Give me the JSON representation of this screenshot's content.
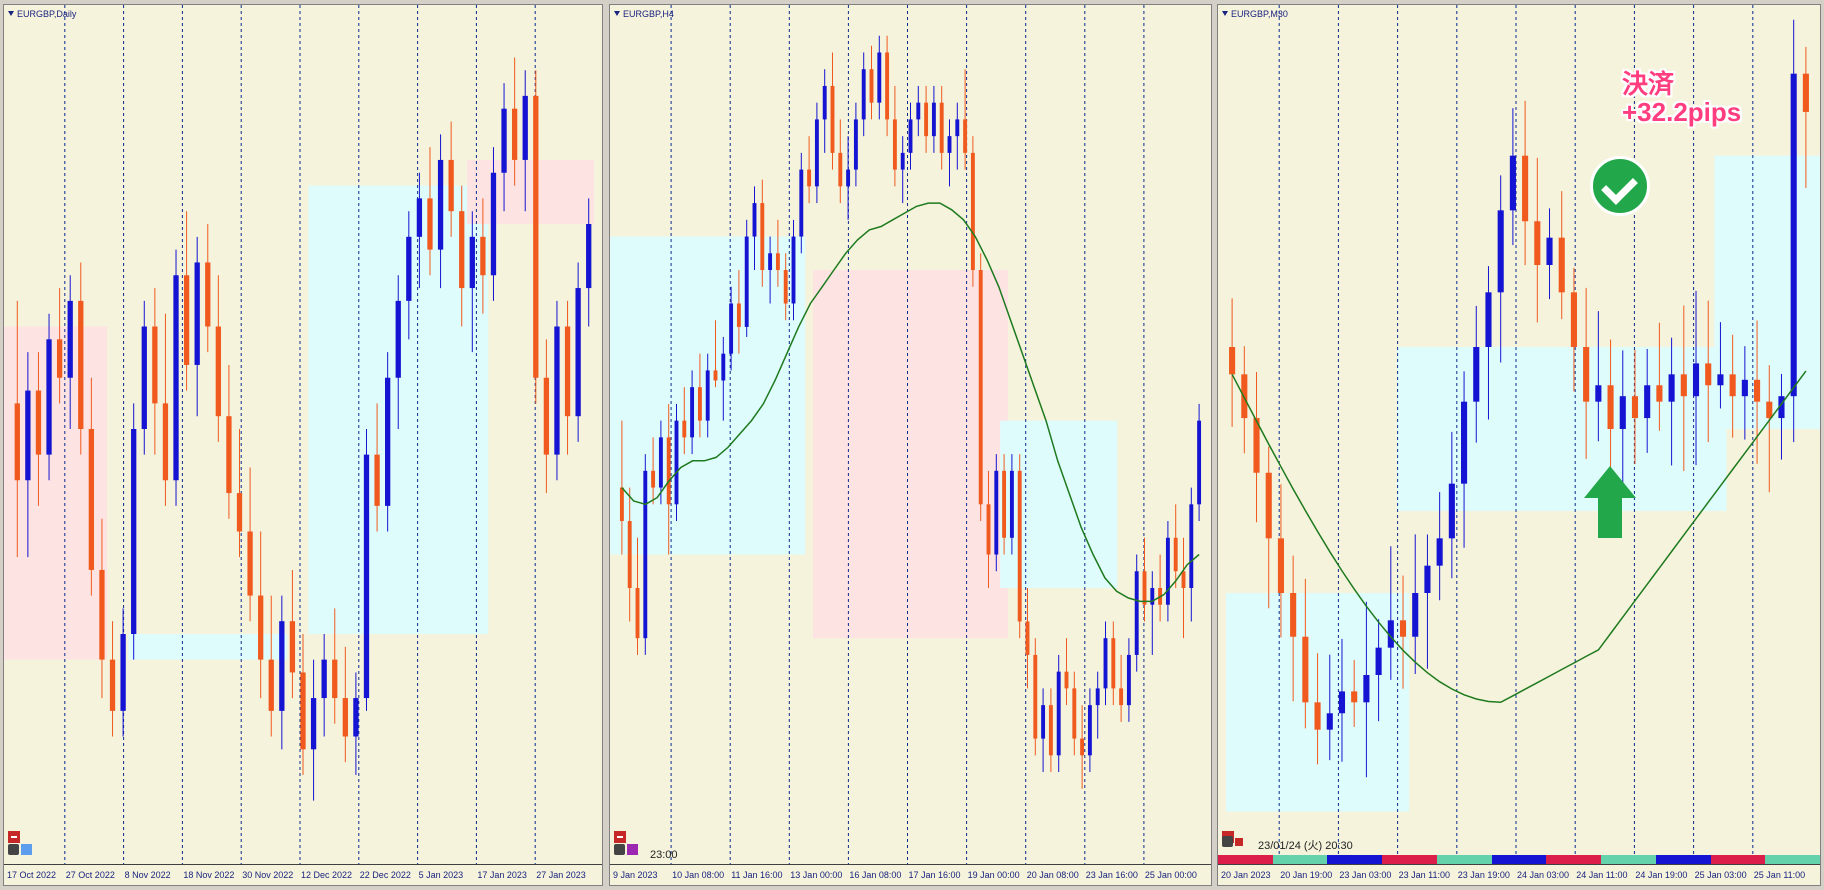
{
  "colors": {
    "bull": "#1414d2",
    "bear": "#f05a1e",
    "ma": "#1e7a1e",
    "bg": "#f5f3dc",
    "zone_blue": "#dffcfc",
    "zone_pink": "#fde4e2",
    "grid": "#0b2b8f"
  },
  "chart_data": [
    {
      "type": "candlestick",
      "title": "EURGBP,Daily",
      "tick_labels": [
        "17 Oct 2022",
        "27 Oct 2022",
        "8 Nov 2022",
        "18 Nov 2022",
        "30 Nov 2022",
        "12 Dec 2022",
        "22 Dec 2022",
        "5 Jan 2023",
        "17 Jan 2023",
        "27 Jan 2023"
      ],
      "ohlc": [
        [
          0.87,
          0.878,
          0.858,
          0.864
        ],
        [
          0.864,
          0.874,
          0.858,
          0.871
        ],
        [
          0.871,
          0.874,
          0.862,
          0.866
        ],
        [
          0.866,
          0.877,
          0.864,
          0.875
        ],
        [
          0.875,
          0.879,
          0.87,
          0.872
        ],
        [
          0.872,
          0.88,
          0.868,
          0.878
        ],
        [
          0.878,
          0.881,
          0.866,
          0.868
        ],
        [
          0.868,
          0.872,
          0.855,
          0.857
        ],
        [
          0.857,
          0.861,
          0.847,
          0.85
        ],
        [
          0.85,
          0.853,
          0.844,
          0.846
        ],
        [
          0.846,
          0.854,
          0.844,
          0.852
        ],
        [
          0.852,
          0.87,
          0.85,
          0.868
        ],
        [
          0.868,
          0.878,
          0.866,
          0.876
        ],
        [
          0.876,
          0.879,
          0.866,
          0.87
        ],
        [
          0.87,
          0.877,
          0.862,
          0.864
        ],
        [
          0.864,
          0.882,
          0.862,
          0.88
        ],
        [
          0.88,
          0.885,
          0.871,
          0.873
        ],
        [
          0.873,
          0.883,
          0.869,
          0.881
        ],
        [
          0.881,
          0.884,
          0.874,
          0.876
        ],
        [
          0.876,
          0.88,
          0.867,
          0.869
        ],
        [
          0.869,
          0.873,
          0.861,
          0.863
        ],
        [
          0.863,
          0.868,
          0.858,
          0.86
        ],
        [
          0.86,
          0.865,
          0.853,
          0.855
        ],
        [
          0.855,
          0.86,
          0.847,
          0.85
        ],
        [
          0.85,
          0.855,
          0.844,
          0.846
        ],
        [
          0.846,
          0.855,
          0.843,
          0.853
        ],
        [
          0.853,
          0.857,
          0.847,
          0.849
        ],
        [
          0.849,
          0.852,
          0.841,
          0.843
        ],
        [
          0.843,
          0.85,
          0.839,
          0.847
        ],
        [
          0.847,
          0.852,
          0.844,
          0.85
        ],
        [
          0.85,
          0.854,
          0.845,
          0.847
        ],
        [
          0.847,
          0.851,
          0.842,
          0.844
        ],
        [
          0.844,
          0.849,
          0.841,
          0.847
        ],
        [
          0.847,
          0.868,
          0.846,
          0.866
        ],
        [
          0.866,
          0.87,
          0.86,
          0.862
        ],
        [
          0.862,
          0.874,
          0.86,
          0.872
        ],
        [
          0.872,
          0.88,
          0.868,
          0.878
        ],
        [
          0.878,
          0.885,
          0.875,
          0.883
        ],
        [
          0.883,
          0.888,
          0.879,
          0.886
        ],
        [
          0.886,
          0.89,
          0.88,
          0.882
        ],
        [
          0.882,
          0.891,
          0.879,
          0.889
        ],
        [
          0.889,
          0.892,
          0.883,
          0.885
        ],
        [
          0.885,
          0.887,
          0.876,
          0.879
        ],
        [
          0.879,
          0.885,
          0.874,
          0.883
        ],
        [
          0.883,
          0.886,
          0.877,
          0.88
        ],
        [
          0.88,
          0.89,
          0.878,
          0.888
        ],
        [
          0.888,
          0.895,
          0.885,
          0.893
        ],
        [
          0.893,
          0.897,
          0.887,
          0.889
        ],
        [
          0.889,
          0.896,
          0.885,
          0.894
        ],
        [
          0.894,
          0.896,
          0.87,
          0.872
        ],
        [
          0.872,
          0.875,
          0.863,
          0.866
        ],
        [
          0.866,
          0.878,
          0.864,
          0.876
        ],
        [
          0.876,
          0.878,
          0.866,
          0.869
        ],
        [
          0.869,
          0.881,
          0.867,
          0.879
        ],
        [
          0.879,
          0.886,
          0.876,
          0.884
        ]
      ],
      "ylim": [
        0.836,
        0.9
      ],
      "zones": [
        {
          "x": [
            -1,
            8
          ],
          "y": [
            0.85,
            0.876
          ],
          "color": "pink"
        },
        {
          "x": [
            11,
            25
          ],
          "y": [
            0.85,
            0.852
          ],
          "color": "blue"
        },
        {
          "x": [
            28,
            44
          ],
          "y": [
            0.852,
            0.887
          ],
          "color": "blue"
        },
        {
          "x": [
            43,
            54
          ],
          "y": [
            0.884,
            0.889
          ],
          "color": "pink"
        }
      ]
    },
    {
      "type": "candlestick",
      "title": "EURGBP,H4",
      "tick_labels": [
        "9 Jan 2023",
        "10 Jan 08:00",
        "11 Jan 16:00",
        "13 Jan 00:00",
        "16 Jan 08:00",
        "17 Jan 16:00",
        "19 Jan 00:00",
        "20 Jan 08:00",
        "23 Jan 16:00",
        "25 Jan 00:00"
      ],
      "time_label": "23:00",
      "ohlc": [
        [
          0.882,
          0.884,
          0.88,
          0.881
        ],
        [
          0.881,
          0.882,
          0.878,
          0.879
        ],
        [
          0.879,
          0.8805,
          0.877,
          0.8775
        ],
        [
          0.8775,
          0.883,
          0.877,
          0.8825
        ],
        [
          0.8825,
          0.8835,
          0.8815,
          0.882
        ],
        [
          0.882,
          0.884,
          0.8815,
          0.8835
        ],
        [
          0.8835,
          0.8845,
          0.88,
          0.8815
        ],
        [
          0.8815,
          0.8845,
          0.881,
          0.884
        ],
        [
          0.884,
          0.885,
          0.883,
          0.8835
        ],
        [
          0.8835,
          0.8855,
          0.883,
          0.885
        ],
        [
          0.885,
          0.886,
          0.8835,
          0.884
        ],
        [
          0.884,
          0.886,
          0.8835,
          0.8855
        ],
        [
          0.8855,
          0.887,
          0.885,
          0.8852
        ],
        [
          0.8852,
          0.8865,
          0.884,
          0.886
        ],
        [
          0.886,
          0.888,
          0.8855,
          0.8875
        ],
        [
          0.8875,
          0.8885,
          0.886,
          0.8868
        ],
        [
          0.8868,
          0.89,
          0.8865,
          0.8895
        ],
        [
          0.8895,
          0.891,
          0.8885,
          0.8905
        ],
        [
          0.8905,
          0.8912,
          0.888,
          0.8885
        ],
        [
          0.8885,
          0.8895,
          0.8875,
          0.889
        ],
        [
          0.889,
          0.89,
          0.888,
          0.8885
        ],
        [
          0.8885,
          0.889,
          0.887,
          0.8875
        ],
        [
          0.8875,
          0.89,
          0.887,
          0.8895
        ],
        [
          0.8895,
          0.892,
          0.889,
          0.8915
        ],
        [
          0.8915,
          0.8925,
          0.8905,
          0.891
        ],
        [
          0.891,
          0.8935,
          0.8905,
          0.893
        ],
        [
          0.893,
          0.8945,
          0.892,
          0.894
        ],
        [
          0.894,
          0.895,
          0.8915,
          0.892
        ],
        [
          0.892,
          0.893,
          0.8905,
          0.891
        ],
        [
          0.891,
          0.8925,
          0.89,
          0.8915
        ],
        [
          0.8915,
          0.8935,
          0.891,
          0.893
        ],
        [
          0.893,
          0.895,
          0.8925,
          0.8945
        ],
        [
          0.8945,
          0.8952,
          0.893,
          0.8935
        ],
        [
          0.8935,
          0.8955,
          0.893,
          0.895
        ],
        [
          0.895,
          0.8955,
          0.8925,
          0.893
        ],
        [
          0.893,
          0.894,
          0.891,
          0.8915
        ],
        [
          0.8915,
          0.8925,
          0.8905,
          0.892
        ],
        [
          0.892,
          0.8935,
          0.8915,
          0.893
        ],
        [
          0.893,
          0.894,
          0.8925,
          0.8935
        ],
        [
          0.8935,
          0.894,
          0.892,
          0.8925
        ],
        [
          0.8925,
          0.894,
          0.892,
          0.8935
        ],
        [
          0.8935,
          0.894,
          0.8915,
          0.892
        ],
        [
          0.892,
          0.893,
          0.891,
          0.8925
        ],
        [
          0.8925,
          0.8935,
          0.8915,
          0.893
        ],
        [
          0.893,
          0.8945,
          0.8915,
          0.892
        ],
        [
          0.892,
          0.8925,
          0.888,
          0.8885
        ],
        [
          0.8885,
          0.889,
          0.881,
          0.8815
        ],
        [
          0.8815,
          0.8825,
          0.879,
          0.88
        ],
        [
          0.88,
          0.883,
          0.8795,
          0.8825
        ],
        [
          0.8825,
          0.883,
          0.88,
          0.8805
        ],
        [
          0.8805,
          0.883,
          0.88,
          0.8825
        ],
        [
          0.8825,
          0.883,
          0.8775,
          0.878
        ],
        [
          0.878,
          0.879,
          0.876,
          0.877
        ],
        [
          0.877,
          0.8775,
          0.874,
          0.8745
        ],
        [
          0.8745,
          0.876,
          0.8735,
          0.8755
        ],
        [
          0.8755,
          0.876,
          0.8735,
          0.874
        ],
        [
          0.874,
          0.877,
          0.8735,
          0.8765
        ],
        [
          0.8765,
          0.8775,
          0.8755,
          0.876
        ],
        [
          0.876,
          0.8765,
          0.874,
          0.8745
        ],
        [
          0.8745,
          0.8755,
          0.873,
          0.874
        ],
        [
          0.874,
          0.876,
          0.8735,
          0.8755
        ],
        [
          0.8755,
          0.8765,
          0.8745,
          0.876
        ],
        [
          0.876,
          0.878,
          0.8755,
          0.8775
        ],
        [
          0.8775,
          0.878,
          0.8755,
          0.876
        ],
        [
          0.876,
          0.877,
          0.875,
          0.8755
        ],
        [
          0.8755,
          0.8775,
          0.875,
          0.877
        ],
        [
          0.877,
          0.88,
          0.8765,
          0.8795
        ],
        [
          0.8795,
          0.8805,
          0.878,
          0.8785
        ],
        [
          0.8785,
          0.8795,
          0.877,
          0.879
        ],
        [
          0.879,
          0.88,
          0.878,
          0.8785
        ],
        [
          0.8785,
          0.881,
          0.878,
          0.8805
        ],
        [
          0.8805,
          0.8815,
          0.879,
          0.8795
        ],
        [
          0.8795,
          0.8805,
          0.8775,
          0.879
        ],
        [
          0.879,
          0.882,
          0.878,
          0.8815
        ],
        [
          0.8815,
          0.8845,
          0.881,
          0.884
        ]
      ],
      "ma": [
        0.882,
        0.8816,
        0.8815,
        0.8817,
        0.8822,
        0.8826,
        0.8828,
        0.8828,
        0.8829,
        0.8832,
        0.8836,
        0.884,
        0.8845,
        0.8852,
        0.886,
        0.8868,
        0.8875,
        0.888,
        0.8885,
        0.889,
        0.8894,
        0.8897,
        0.8898,
        0.89,
        0.8902,
        0.8904,
        0.8905,
        0.8905,
        0.8903,
        0.89,
        0.8895,
        0.8888,
        0.888,
        0.887,
        0.886,
        0.885,
        0.884,
        0.8828,
        0.8818,
        0.8808,
        0.88,
        0.8793,
        0.8789,
        0.8787,
        0.8786,
        0.8786,
        0.8788,
        0.8792,
        0.8797,
        0.88
      ],
      "ma_start": 0,
      "ylim": [
        0.8715,
        0.896
      ],
      "zones": [
        {
          "x": [
            -1,
            23
          ],
          "y": [
            0.88,
            0.8895
          ],
          "color": "blue"
        },
        {
          "x": [
            25,
            49
          ],
          "y": [
            0.8775,
            0.8885
          ],
          "color": "pink"
        },
        {
          "x": [
            49,
            63
          ],
          "y": [
            0.879,
            0.884
          ],
          "color": "blue"
        }
      ]
    },
    {
      "type": "candlestick",
      "title": "EURGBP,M30",
      "tick_labels": [
        "20 Jan 2023",
        "20 Jan 19:00",
        "23 Jan 03:00",
        "23 Jan 11:00",
        "23 Jan 19:00",
        "24 Jan 03:00",
        "24 Jan 11:00",
        "24 Jan 19:00",
        "25 Jan 03:00",
        "25 Jan 11:00"
      ],
      "time_label": "23/01/24 (火) 20:30",
      "ylim": [
        0.8745,
        0.8895
      ],
      "zones": [
        {
          "x": [
            0,
            14
          ],
          "y": [
            0.875,
            0.879
          ],
          "color": "blue"
        },
        {
          "x": [
            14,
            40
          ],
          "y": [
            0.8805,
            0.8835
          ],
          "color": "blue"
        },
        {
          "x": [
            40,
            62
          ],
          "y": [
            0.882,
            0.887
          ],
          "color": "blue"
        }
      ],
      "annotation": {
        "line1": "決済",
        "line2": "+32.2pips"
      }
    }
  ]
}
